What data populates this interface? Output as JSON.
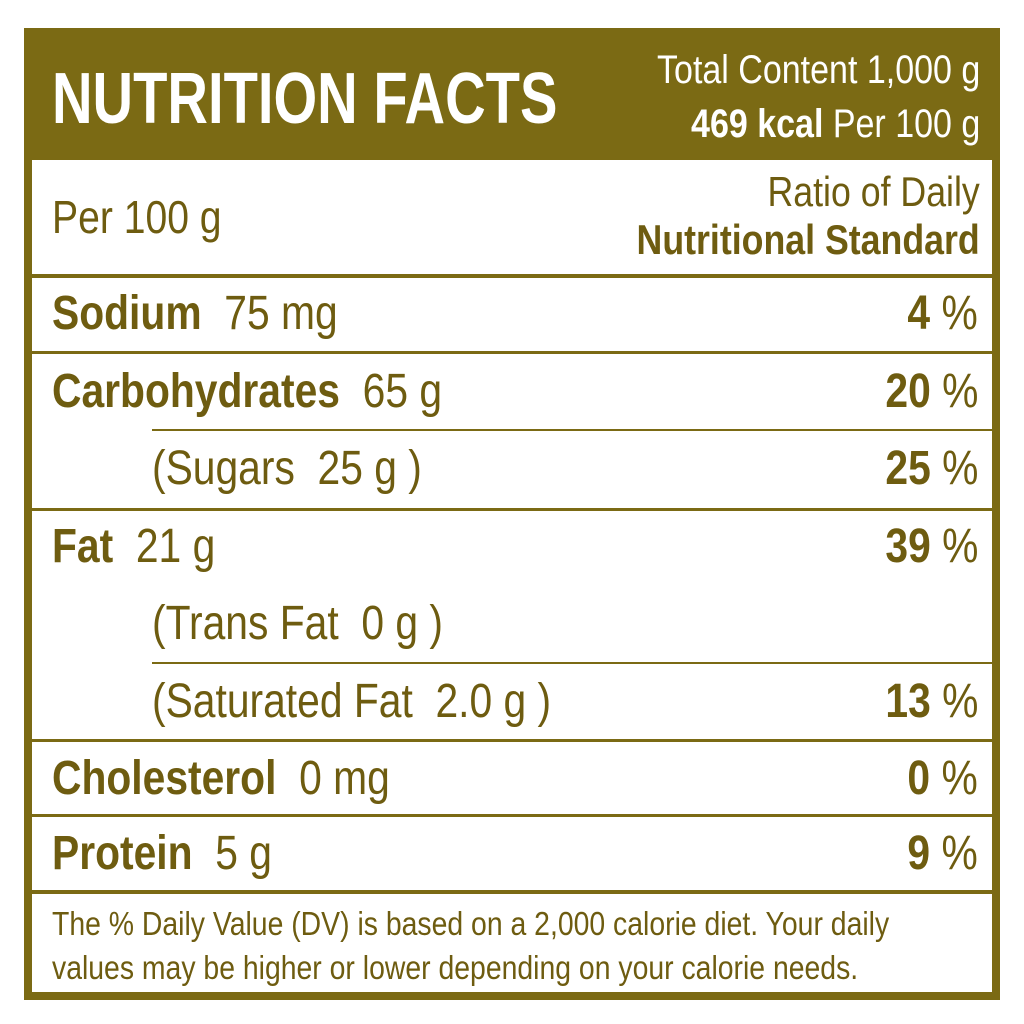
{
  "header": {
    "title": "NUTRITION FACTS",
    "total": "Total Content 1,000 g",
    "kcal": "469 kcal",
    "per": "Per 100 g"
  },
  "subheader": {
    "left": "Per 100 g",
    "right_line1": "Ratio of Daily",
    "right_line2": "Nutritional Standard"
  },
  "rows": [
    {
      "name": "Sodium",
      "amount": "75 mg",
      "dv": 4,
      "unit": "%"
    },
    {
      "name": "Carbohydrates",
      "amount": "65 g",
      "dv": 20,
      "unit": "%"
    },
    {
      "name": "(Sugars",
      "amount": "25 g )",
      "dv": 25,
      "unit": "%"
    },
    {
      "name": "Fat",
      "amount": "21 g",
      "dv": 39,
      "unit": "%"
    },
    {
      "name": "(Trans Fat",
      "amount": "0 g )"
    },
    {
      "name": "(Saturated Fat",
      "amount": "2.0 g )",
      "dv": 13,
      "unit": "%"
    },
    {
      "name": "Cholesterol",
      "amount": "0 mg",
      "dv": 0,
      "unit": "%"
    },
    {
      "name": "Protein",
      "amount": "5 g",
      "dv": 9,
      "unit": "%"
    }
  ],
  "footer": {
    "line1": "The % Daily Value (DV) is based on a 2,000 calorie diet. Your daily",
    "line2": "values may be higher or lower depending on your calorie needs."
  }
}
